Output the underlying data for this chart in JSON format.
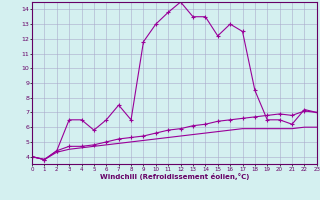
{
  "xlabel": "Windchill (Refroidissement éolien,°C)",
  "x": [
    0,
    1,
    2,
    3,
    4,
    5,
    6,
    7,
    8,
    9,
    10,
    11,
    12,
    13,
    14,
    15,
    16,
    17,
    18,
    19,
    20,
    21,
    22,
    23
  ],
  "line1": [
    4.0,
    3.8,
    4.4,
    6.5,
    6.5,
    5.8,
    6.5,
    7.5,
    6.5,
    11.8,
    13.0,
    13.8,
    14.5,
    13.5,
    13.5,
    12.2,
    13.0,
    12.5,
    8.5,
    6.5,
    6.5,
    6.2,
    7.2,
    7.0
  ],
  "line2": [
    4.0,
    3.8,
    4.4,
    4.7,
    4.7,
    4.8,
    5.0,
    5.2,
    5.3,
    5.4,
    5.6,
    5.8,
    5.9,
    6.1,
    6.2,
    6.4,
    6.5,
    6.6,
    6.7,
    6.8,
    6.9,
    6.8,
    7.1,
    7.0
  ],
  "line3": [
    4.0,
    3.8,
    4.3,
    4.5,
    4.6,
    4.7,
    4.8,
    4.9,
    5.0,
    5.1,
    5.2,
    5.3,
    5.4,
    5.5,
    5.6,
    5.7,
    5.8,
    5.9,
    5.9,
    5.9,
    5.9,
    5.9,
    6.0,
    6.0
  ],
  "line_color": "#990099",
  "bg_color": "#d4f0f0",
  "grid_color": "#aaaacc",
  "xlim": [
    0,
    23
  ],
  "ylim": [
    3.5,
    14.5
  ],
  "yticks": [
    4,
    5,
    6,
    7,
    8,
    9,
    10,
    11,
    12,
    13,
    14
  ],
  "xticks": [
    0,
    1,
    2,
    3,
    4,
    5,
    6,
    7,
    8,
    9,
    10,
    11,
    12,
    13,
    14,
    15,
    16,
    17,
    18,
    19,
    20,
    21,
    22,
    23
  ]
}
